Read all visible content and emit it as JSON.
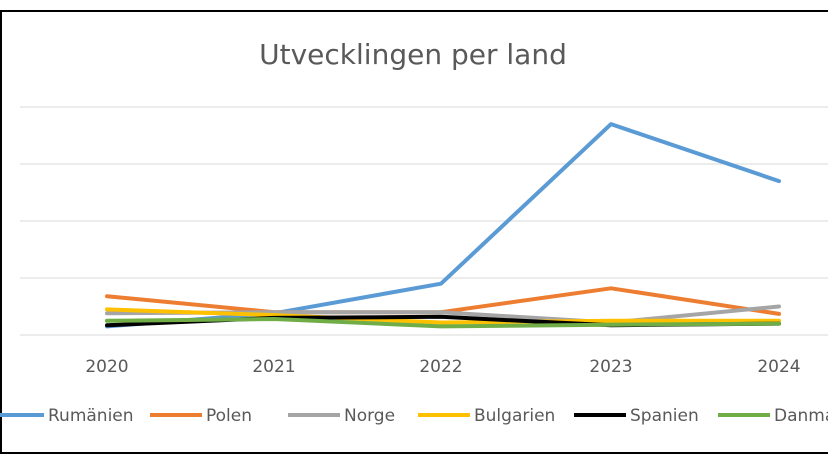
{
  "chart_data": {
    "type": "line",
    "title": "Utvecklingen per land",
    "categories": [
      "2020",
      "2021",
      "2022",
      "2023",
      "2024"
    ],
    "ylim": [
      0,
      400
    ],
    "grid": true,
    "legend_position": "bottom",
    "series": [
      {
        "name": "Rumänien",
        "color": "#5b9bd5",
        "values": [
          15,
          38,
          90,
          370,
          270
        ]
      },
      {
        "name": "Polen",
        "color": "#ed7d31",
        "values": [
          68,
          40,
          40,
          82,
          37
        ]
      },
      {
        "name": "Norge",
        "color": "#a5a5a5",
        "values": [
          38,
          40,
          40,
          22,
          50
        ]
      },
      {
        "name": "Bulgarien",
        "color": "#ffc000",
        "values": [
          45,
          35,
          22,
          25,
          25
        ]
      },
      {
        "name": "Spanien",
        "color": "#000000",
        "values": [
          17,
          30,
          32,
          17,
          20
        ]
      },
      {
        "name": "Danmark",
        "color": "#70ad47",
        "values": [
          25,
          28,
          15,
          18,
          20
        ]
      }
    ]
  }
}
